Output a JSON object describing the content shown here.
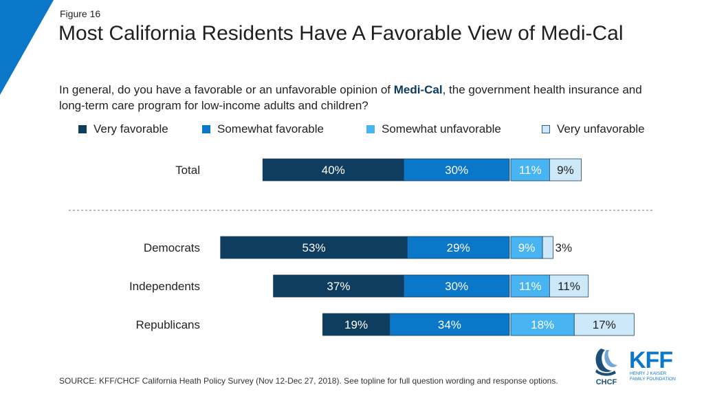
{
  "figure_label": "Figure 16",
  "title": "Most California Residents Have A Favorable View of Medi-Cal",
  "question": {
    "before": "In general, do you have a favorable or an unfavorable opinion of ",
    "highlight": "Medi-Cal",
    "after": ", the government health insurance and long-term care program for low-income adults and children?"
  },
  "colors": {
    "very_favorable": "#0f3d5f",
    "somewhat_favorable": "#0a77c9",
    "somewhat_unfavorable": "#48b4f2",
    "very_unfavorable": "#cde8f9",
    "accent_corner": "#0a77c9"
  },
  "chart_data": {
    "type": "bar",
    "orientation": "horizontal",
    "stacked": "diverging",
    "categories": [
      "Total",
      "Democrats",
      "Independents",
      "Republicans"
    ],
    "series": [
      {
        "name": "Very favorable",
        "values": [
          40,
          53,
          37,
          19
        ],
        "labels": [
          "40%",
          "53%",
          "37%",
          "19%"
        ]
      },
      {
        "name": "Somewhat favorable",
        "values": [
          30,
          29,
          30,
          34
        ],
        "labels": [
          "30%",
          "29%",
          "30%",
          "34%"
        ]
      },
      {
        "name": "Somewhat unfavorable",
        "values": [
          11,
          9,
          11,
          18
        ],
        "labels": [
          "11%",
          "9%",
          "11%",
          "18%"
        ]
      },
      {
        "name": "Very unfavorable",
        "values": [
          9,
          3,
          11,
          17
        ],
        "labels": [
          "9%",
          "3%",
          "11%",
          "17%"
        ]
      }
    ],
    "legend_position": "top",
    "separator_after": "Total",
    "grid": false
  },
  "footer": "SOURCE: KFF/CHCF California Heath Policy Survey (Nov 12-Dec 27, 2018). See topline for full question wording and response options.",
  "logos": {
    "chcf": "CHCF",
    "kff": "KFF",
    "kff_sub1": "HENRY J KAISER",
    "kff_sub2": "FAMILY FOUNDATION"
  }
}
